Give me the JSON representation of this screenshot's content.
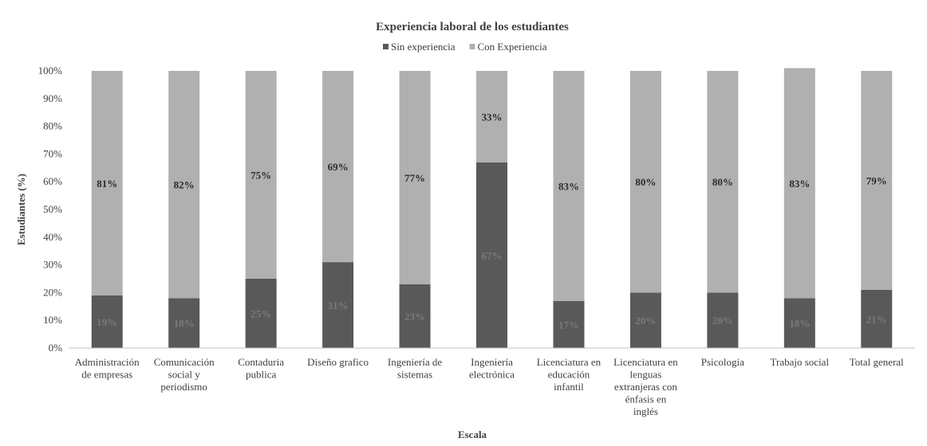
{
  "chart_data": {
    "type": "bar",
    "stacked": true,
    "title": "Experiencia  laboral de los estudiantes",
    "xlabel": "Escala",
    "ylabel": "Estudiantes (%)",
    "ylim": [
      0,
      100
    ],
    "y_ticks": [
      "0%",
      "10%",
      "20%",
      "30%",
      "40%",
      "50%",
      "60%",
      "70%",
      "80%",
      "90%",
      "100%"
    ],
    "legend_position": "top",
    "categories": [
      [
        "Administración",
        "de empresas"
      ],
      [
        "Comunicación",
        "social y",
        "periodismo"
      ],
      [
        "Contaduria",
        "publica"
      ],
      [
        "Diseño grafico"
      ],
      [
        "Ingeniería de",
        "sistemas"
      ],
      [
        "Ingeniería",
        "electrónica"
      ],
      [
        "Licenciatura en",
        "educación",
        "infantil"
      ],
      [
        "Licenciatura en",
        "lenguas",
        "extranjeras con",
        "énfasis en",
        "inglés"
      ],
      [
        "Psicología"
      ],
      [
        "Trabajo social"
      ],
      [
        "Total general"
      ]
    ],
    "series": [
      {
        "name": "Sin experiencia",
        "color": "#595959",
        "values": [
          19,
          18,
          25,
          31,
          23,
          67,
          17,
          20,
          20,
          18,
          21
        ],
        "labels": [
          "19%",
          "18%",
          "25%",
          "31%",
          "23%",
          "67%",
          "17%",
          "20%",
          "20%",
          "18%",
          "21%"
        ]
      },
      {
        "name": "Con Experiencia",
        "color": "#b0b0b0",
        "values": [
          81,
          82,
          75,
          69,
          77,
          33,
          83,
          80,
          80,
          83,
          79
        ],
        "labels": [
          "81%",
          "82%",
          "75%",
          "69%",
          "77%",
          "33%",
          "83%",
          "80%",
          "80%",
          "83%",
          "79%"
        ]
      }
    ],
    "colors": {
      "axis": "#bfbfbf",
      "text": "#404040"
    }
  }
}
